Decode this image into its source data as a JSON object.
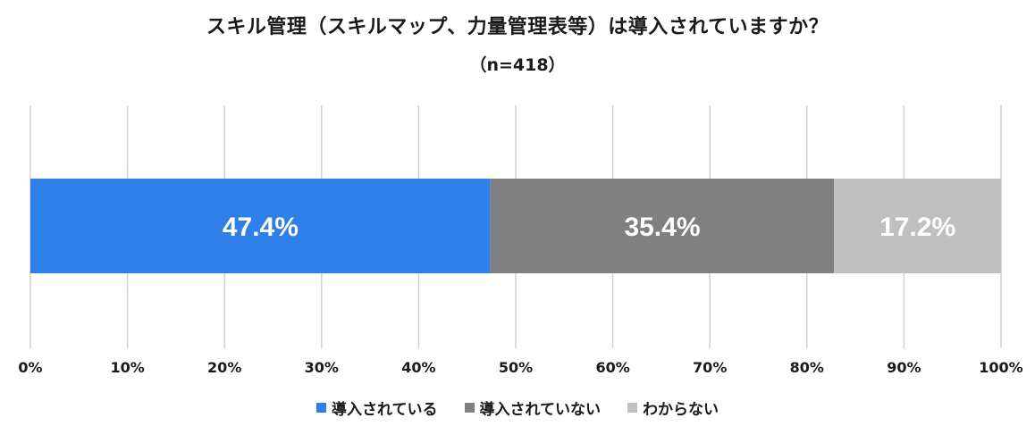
{
  "chart_data": {
    "type": "bar",
    "orientation": "horizontal-stacked",
    "title": "スキル管理（スキルマップ、力量管理表等）は導入されていますか？",
    "subtitle": "（n=418）",
    "series": [
      {
        "name": "導入されている",
        "values": [
          47.4
        ],
        "label": "47.4%",
        "color": "#2f7fe8"
      },
      {
        "name": "導入されていない",
        "values": [
          35.4
        ],
        "label": "35.4%",
        "color": "#808080"
      },
      {
        "name": "わからない",
        "values": [
          17.2
        ],
        "label": "17.2%",
        "color": "#bfbfbf"
      }
    ],
    "xlim": [
      0,
      100
    ],
    "x_ticks": [
      "0%",
      "10%",
      "20%",
      "30%",
      "40%",
      "50%",
      "60%",
      "70%",
      "80%",
      "90%",
      "100%"
    ],
    "grid": true,
    "legend_position": "bottom"
  }
}
